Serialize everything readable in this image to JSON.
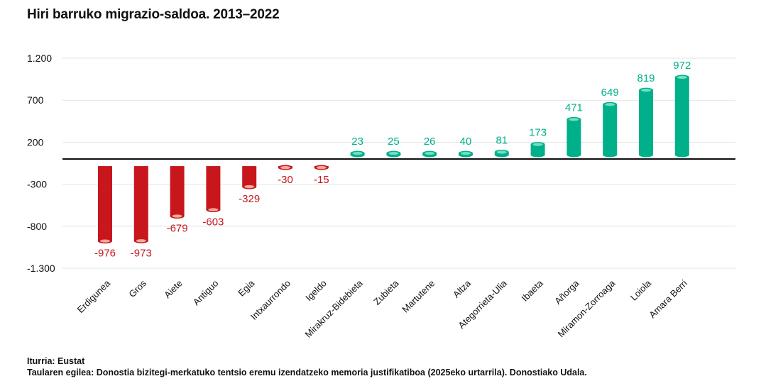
{
  "title": "Hiri barruko migrazio-saldoa. 2013–2022",
  "footer": {
    "source": "Iturria: Eustat",
    "credit": "Taularen egilea: Donostia bizitegi-merkatuko tentsio eremu izendatzeko memoria justifikatiboa (2025eko urtarrila). Donostiako Udala."
  },
  "colors": {
    "negative": "#c8161d",
    "positive": "#00b08a",
    "negative_cap": "#f4a99c",
    "positive_cap": "#6fe0c2",
    "zero_line": "#000000",
    "grid": "#e3e3e3"
  },
  "chart_data": {
    "type": "bar",
    "title": "Hiri barruko migrazio-saldoa. 2013–2022",
    "xlabel": "",
    "ylabel": "",
    "ylim": [
      -1300,
      1200
    ],
    "yticks": [
      1200,
      700,
      200,
      -300,
      -800,
      -1300
    ],
    "ytick_labels": [
      "1.200",
      "700",
      "200",
      "-300",
      "-800",
      "-1.300"
    ],
    "grid": true,
    "categories": [
      "Erdigunea",
      "Gros",
      "Aiete",
      "Antiguo",
      "Egia",
      "Intxaurrondo",
      "Igeldo",
      "Mirakruz-Bidebieta",
      "Zubieta",
      "Martutene",
      "Altza",
      "Ategorrieta-Ulia",
      "Ibaeta",
      "Añorga",
      "Miramon-Zorroaga",
      "Loiola",
      "Amara Berri"
    ],
    "values": [
      -976,
      -973,
      -679,
      -603,
      -329,
      -30,
      -15,
      23,
      25,
      26,
      40,
      81,
      173,
      471,
      649,
      819,
      972
    ],
    "value_labels": [
      "-976",
      "-973",
      "-679",
      "-603",
      "-329",
      "-30",
      "-15",
      "23",
      "25",
      "26",
      "40",
      "81",
      "173",
      "471",
      "649",
      "819",
      "972"
    ]
  }
}
